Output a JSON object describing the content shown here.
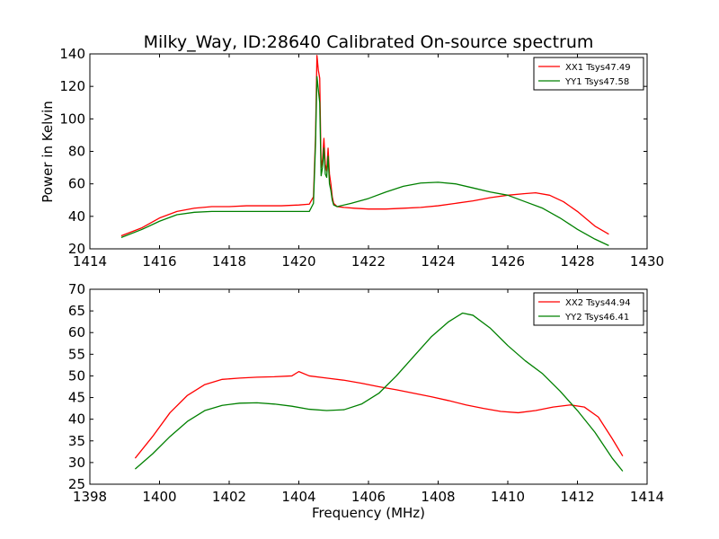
{
  "figure": {
    "title": "Milky_Way, ID:28640 Calibrated On-source spectrum",
    "ylabel": "Power in Kelvin",
    "xlabel": "Frequency (MHz)"
  },
  "chart_data": [
    {
      "type": "line",
      "title": "Milky_Way, ID:28640 Calibrated On-source spectrum",
      "ylabel": "Power in Kelvin",
      "xlabel": "",
      "xlim": [
        1414,
        1430
      ],
      "ylim": [
        20,
        140
      ],
      "xticks": [
        1414,
        1416,
        1418,
        1420,
        1422,
        1424,
        1426,
        1428,
        1430
      ],
      "yticks": [
        20,
        40,
        60,
        80,
        100,
        120,
        140
      ],
      "grid": false,
      "legend": "top-right",
      "series": [
        {
          "name": "XX1 Tsys47.49",
          "color": "#ff0000",
          "x": [
            1414.9,
            1415.5,
            1416.0,
            1416.5,
            1417.0,
            1417.5,
            1418.0,
            1418.5,
            1419.0,
            1419.5,
            1420.0,
            1420.3,
            1420.42,
            1420.48,
            1420.52,
            1420.56,
            1420.6,
            1420.64,
            1420.68,
            1420.72,
            1420.76,
            1420.8,
            1420.84,
            1420.88,
            1420.92,
            1420.96,
            1421.0,
            1421.1,
            1421.3,
            1421.6,
            1422.0,
            1422.5,
            1423.0,
            1423.5,
            1424.0,
            1424.5,
            1425.0,
            1425.5,
            1426.0,
            1426.5,
            1426.8,
            1427.2,
            1427.6,
            1428.0,
            1428.5,
            1428.9
          ],
          "y": [
            28,
            33,
            39,
            43,
            45,
            46,
            46,
            46.5,
            46.5,
            46.5,
            47,
            47.5,
            52,
            90,
            139,
            130,
            125,
            70,
            75,
            88,
            72,
            68,
            82,
            66,
            60,
            52,
            48,
            46,
            45.5,
            45,
            44.5,
            44.5,
            45,
            45.5,
            46.5,
            48,
            49.5,
            51.5,
            53,
            54,
            54.5,
            53,
            49,
            43,
            34,
            29
          ]
        },
        {
          "name": "YY1 Tsys47.58",
          "color": "#008000",
          "x": [
            1414.9,
            1415.5,
            1416.0,
            1416.5,
            1417.0,
            1417.5,
            1418.0,
            1418.5,
            1419.0,
            1419.5,
            1420.0,
            1420.3,
            1420.42,
            1420.48,
            1420.52,
            1420.56,
            1420.6,
            1420.64,
            1420.68,
            1420.72,
            1420.76,
            1420.8,
            1420.84,
            1420.88,
            1420.92,
            1420.96,
            1421.0,
            1421.1,
            1421.5,
            1422.0,
            1422.5,
            1423.0,
            1423.5,
            1424.0,
            1424.5,
            1425.0,
            1425.5,
            1426.0,
            1426.5,
            1427.0,
            1427.5,
            1428.0,
            1428.5,
            1428.9
          ],
          "y": [
            27,
            32,
            37,
            41,
            42.5,
            43,
            43,
            43,
            43,
            43,
            43,
            43,
            48,
            85,
            126,
            118,
            110,
            65,
            70,
            82,
            66,
            64,
            77,
            60,
            56,
            50,
            47,
            46,
            48,
            51,
            55,
            58.5,
            60.5,
            61,
            60,
            57.5,
            55,
            53,
            49,
            45,
            39,
            32,
            26,
            22
          ]
        }
      ]
    },
    {
      "type": "line",
      "title": "",
      "ylabel": "",
      "xlabel": "Frequency (MHz)",
      "xlim": [
        1398,
        1414
      ],
      "ylim": [
        25,
        70
      ],
      "xticks": [
        1398,
        1400,
        1402,
        1404,
        1406,
        1408,
        1410,
        1412,
        1414
      ],
      "yticks": [
        25,
        30,
        35,
        40,
        45,
        50,
        55,
        60,
        65,
        70
      ],
      "grid": false,
      "legend": "top-right",
      "series": [
        {
          "name": "XX2 Tsys44.94",
          "color": "#ff0000",
          "x": [
            1399.3,
            1399.8,
            1400.3,
            1400.8,
            1401.3,
            1401.8,
            1402.3,
            1402.8,
            1403.3,
            1403.8,
            1404.0,
            1404.3,
            1404.8,
            1405.3,
            1405.8,
            1406.3,
            1406.8,
            1407.3,
            1407.8,
            1408.3,
            1408.8,
            1409.3,
            1409.8,
            1410.3,
            1410.8,
            1411.3,
            1411.8,
            1412.2,
            1412.6,
            1413.0,
            1413.3
          ],
          "y": [
            31,
            36,
            41.5,
            45.5,
            48,
            49.2,
            49.5,
            49.7,
            49.8,
            50,
            51,
            50,
            49.5,
            49,
            48.3,
            47.5,
            46.8,
            46,
            45.2,
            44.3,
            43.3,
            42.5,
            41.8,
            41.5,
            42,
            42.8,
            43.3,
            42.8,
            40.5,
            35.5,
            31.5
          ]
        },
        {
          "name": "YY2 Tsys46.41",
          "color": "#008000",
          "x": [
            1399.3,
            1399.8,
            1400.3,
            1400.8,
            1401.3,
            1401.8,
            1402.3,
            1402.8,
            1403.3,
            1403.8,
            1404.3,
            1404.8,
            1405.3,
            1405.8,
            1406.3,
            1406.8,
            1407.3,
            1407.8,
            1408.3,
            1408.7,
            1409.0,
            1409.5,
            1410.0,
            1410.5,
            1411.0,
            1411.5,
            1412.0,
            1412.5,
            1413.0,
            1413.3
          ],
          "y": [
            28.5,
            32,
            36,
            39.5,
            42,
            43.2,
            43.7,
            43.8,
            43.5,
            43,
            42.3,
            42,
            42.2,
            43.5,
            46,
            50,
            54.5,
            59,
            62.5,
            64.5,
            64,
            61,
            57,
            53.5,
            50.5,
            46.5,
            42,
            37,
            31,
            28
          ]
        }
      ]
    }
  ]
}
